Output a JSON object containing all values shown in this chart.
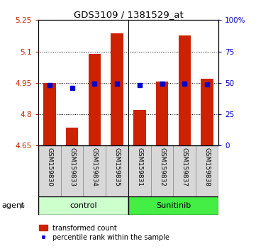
{
  "title": "GDS3109 / 1381529_at",
  "samples": [
    "GSM159830",
    "GSM159833",
    "GSM159834",
    "GSM159835",
    "GSM159831",
    "GSM159832",
    "GSM159837",
    "GSM159838"
  ],
  "groups": [
    "control",
    "control",
    "control",
    "control",
    "Sunitinib",
    "Sunitinib",
    "Sunitinib",
    "Sunitinib"
  ],
  "bar_values": [
    4.95,
    4.735,
    5.09,
    5.185,
    4.82,
    4.955,
    5.175,
    4.97
  ],
  "dot_values": [
    4.94,
    4.925,
    4.945,
    4.945,
    4.94,
    4.945,
    4.945,
    4.943
  ],
  "bar_bottom": 4.65,
  "ylim": [
    4.65,
    5.25
  ],
  "yticks": [
    4.65,
    4.8,
    4.95,
    5.1,
    5.25
  ],
  "right_yticks": [
    0,
    25,
    50,
    75,
    100
  ],
  "right_ytick_labels": [
    "0",
    "25",
    "50",
    "75",
    "100%"
  ],
  "bar_color": "#cc2200",
  "dot_color": "#0000cc",
  "grid_color": "#000000",
  "control_color_light": "#ccffcc",
  "sunitinib_color": "#44ee44",
  "ylabel_color": "#cc2200",
  "right_ylabel_color": "#0000cc",
  "agent_label": "agent",
  "group_labels": [
    "control",
    "Sunitinib"
  ],
  "legend_bar_label": "transformed count",
  "legend_dot_label": "percentile rank within the sample",
  "bar_width": 0.55,
  "bg_color": "#ffffff",
  "plot_bg": "#ffffff"
}
